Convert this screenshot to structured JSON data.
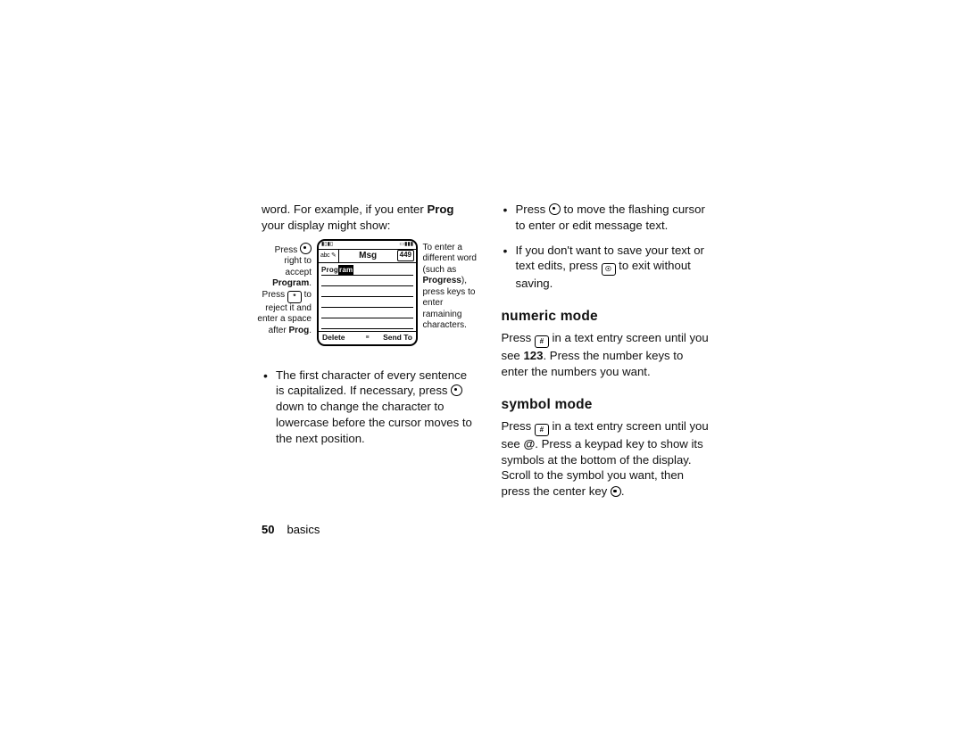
{
  "col1": {
    "intro_pre": "word. For example, if you enter ",
    "intro_bold": "Prog",
    "intro_post": " your display might show:",
    "left_caption": {
      "l1": "Press ",
      "l2": " right to accept ",
      "l2b": "Program",
      "l3": ". Press ",
      "l3key": "*",
      "l4": " to reject it and enter a space after ",
      "l4b": "Prog",
      "l5": "."
    },
    "right_caption": {
      "r1": "To enter a different word (such as ",
      "r1b": "Progress",
      "r2": "), press keys to enter ramaining characters."
    },
    "phone": {
      "mode": "abc ✎",
      "title": "Msg",
      "count": "449",
      "typed": "Prog",
      "suggest": "ram",
      "sk_left": "Delete",
      "sk_mid": "≡",
      "sk_right": "Send To"
    },
    "bullet1": "The first character of every sentence is capitalized. If necessary, press ",
    "bullet1_post": " down to change the character to lowercase before the cursor moves to the next position."
  },
  "col2": {
    "bullet1_pre": "Press ",
    "bullet1_post": " to move the flashing cursor to enter or edit message text.",
    "bullet2_pre": "If you don't want to save your text or text edits, press ",
    "bullet2_key": "☉",
    "bullet2_post": " to exit without saving.",
    "heading_numeric": "numeric mode",
    "numeric_pre": "Press ",
    "numeric_key": "#",
    "numeric_mid": " in a text entry screen until you see ",
    "numeric_bold": "123",
    "numeric_post": ". Press the number keys to enter the numbers you want.",
    "heading_symbol": "symbol mode",
    "symbol_pre": "Press ",
    "symbol_key": "#",
    "symbol_mid": " in a text entry screen until you see ",
    "symbol_bold": "@",
    "symbol_post1": ". Press a keypad key to show its symbols at the bottom of the display. Scroll to the symbol you want, then press the center key ",
    "symbol_post2": "."
  },
  "footer": {
    "page": "50",
    "section": "basics"
  }
}
